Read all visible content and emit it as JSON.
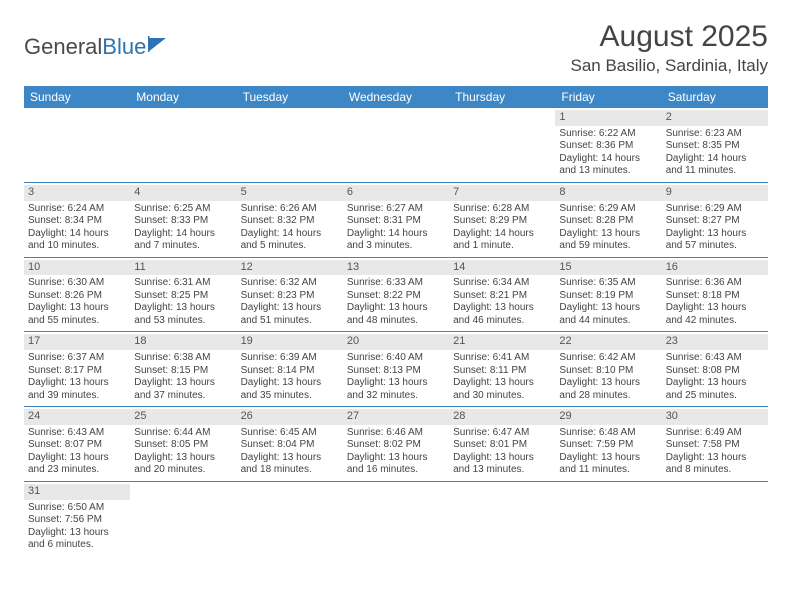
{
  "logo": {
    "part1": "General",
    "part2": "Blue"
  },
  "title": "August 2025",
  "location": "San Basilio, Sardinia, Italy",
  "colors": {
    "header_bg": "#3d87c7",
    "header_text": "#ffffff",
    "daynum_bg": "#e8e8e8",
    "border": "#3d87c7",
    "text": "#444444",
    "logo_blue": "#2e74b5"
  },
  "weekdays": [
    "Sunday",
    "Monday",
    "Tuesday",
    "Wednesday",
    "Thursday",
    "Friday",
    "Saturday"
  ],
  "weeks": [
    [
      null,
      null,
      null,
      null,
      null,
      {
        "n": "1",
        "sr": "Sunrise: 6:22 AM",
        "ss": "Sunset: 8:36 PM",
        "d1": "Daylight: 14 hours",
        "d2": "and 13 minutes."
      },
      {
        "n": "2",
        "sr": "Sunrise: 6:23 AM",
        "ss": "Sunset: 8:35 PM",
        "d1": "Daylight: 14 hours",
        "d2": "and 11 minutes."
      }
    ],
    [
      {
        "n": "3",
        "sr": "Sunrise: 6:24 AM",
        "ss": "Sunset: 8:34 PM",
        "d1": "Daylight: 14 hours",
        "d2": "and 10 minutes."
      },
      {
        "n": "4",
        "sr": "Sunrise: 6:25 AM",
        "ss": "Sunset: 8:33 PM",
        "d1": "Daylight: 14 hours",
        "d2": "and 7 minutes."
      },
      {
        "n": "5",
        "sr": "Sunrise: 6:26 AM",
        "ss": "Sunset: 8:32 PM",
        "d1": "Daylight: 14 hours",
        "d2": "and 5 minutes."
      },
      {
        "n": "6",
        "sr": "Sunrise: 6:27 AM",
        "ss": "Sunset: 8:31 PM",
        "d1": "Daylight: 14 hours",
        "d2": "and 3 minutes."
      },
      {
        "n": "7",
        "sr": "Sunrise: 6:28 AM",
        "ss": "Sunset: 8:29 PM",
        "d1": "Daylight: 14 hours",
        "d2": "and 1 minute."
      },
      {
        "n": "8",
        "sr": "Sunrise: 6:29 AM",
        "ss": "Sunset: 8:28 PM",
        "d1": "Daylight: 13 hours",
        "d2": "and 59 minutes."
      },
      {
        "n": "9",
        "sr": "Sunrise: 6:29 AM",
        "ss": "Sunset: 8:27 PM",
        "d1": "Daylight: 13 hours",
        "d2": "and 57 minutes."
      }
    ],
    [
      {
        "n": "10",
        "sr": "Sunrise: 6:30 AM",
        "ss": "Sunset: 8:26 PM",
        "d1": "Daylight: 13 hours",
        "d2": "and 55 minutes."
      },
      {
        "n": "11",
        "sr": "Sunrise: 6:31 AM",
        "ss": "Sunset: 8:25 PM",
        "d1": "Daylight: 13 hours",
        "d2": "and 53 minutes."
      },
      {
        "n": "12",
        "sr": "Sunrise: 6:32 AM",
        "ss": "Sunset: 8:23 PM",
        "d1": "Daylight: 13 hours",
        "d2": "and 51 minutes."
      },
      {
        "n": "13",
        "sr": "Sunrise: 6:33 AM",
        "ss": "Sunset: 8:22 PM",
        "d1": "Daylight: 13 hours",
        "d2": "and 48 minutes."
      },
      {
        "n": "14",
        "sr": "Sunrise: 6:34 AM",
        "ss": "Sunset: 8:21 PM",
        "d1": "Daylight: 13 hours",
        "d2": "and 46 minutes."
      },
      {
        "n": "15",
        "sr": "Sunrise: 6:35 AM",
        "ss": "Sunset: 8:19 PM",
        "d1": "Daylight: 13 hours",
        "d2": "and 44 minutes."
      },
      {
        "n": "16",
        "sr": "Sunrise: 6:36 AM",
        "ss": "Sunset: 8:18 PM",
        "d1": "Daylight: 13 hours",
        "d2": "and 42 minutes."
      }
    ],
    [
      {
        "n": "17",
        "sr": "Sunrise: 6:37 AM",
        "ss": "Sunset: 8:17 PM",
        "d1": "Daylight: 13 hours",
        "d2": "and 39 minutes."
      },
      {
        "n": "18",
        "sr": "Sunrise: 6:38 AM",
        "ss": "Sunset: 8:15 PM",
        "d1": "Daylight: 13 hours",
        "d2": "and 37 minutes."
      },
      {
        "n": "19",
        "sr": "Sunrise: 6:39 AM",
        "ss": "Sunset: 8:14 PM",
        "d1": "Daylight: 13 hours",
        "d2": "and 35 minutes."
      },
      {
        "n": "20",
        "sr": "Sunrise: 6:40 AM",
        "ss": "Sunset: 8:13 PM",
        "d1": "Daylight: 13 hours",
        "d2": "and 32 minutes."
      },
      {
        "n": "21",
        "sr": "Sunrise: 6:41 AM",
        "ss": "Sunset: 8:11 PM",
        "d1": "Daylight: 13 hours",
        "d2": "and 30 minutes."
      },
      {
        "n": "22",
        "sr": "Sunrise: 6:42 AM",
        "ss": "Sunset: 8:10 PM",
        "d1": "Daylight: 13 hours",
        "d2": "and 28 minutes."
      },
      {
        "n": "23",
        "sr": "Sunrise: 6:43 AM",
        "ss": "Sunset: 8:08 PM",
        "d1": "Daylight: 13 hours",
        "d2": "and 25 minutes."
      }
    ],
    [
      {
        "n": "24",
        "sr": "Sunrise: 6:43 AM",
        "ss": "Sunset: 8:07 PM",
        "d1": "Daylight: 13 hours",
        "d2": "and 23 minutes."
      },
      {
        "n": "25",
        "sr": "Sunrise: 6:44 AM",
        "ss": "Sunset: 8:05 PM",
        "d1": "Daylight: 13 hours",
        "d2": "and 20 minutes."
      },
      {
        "n": "26",
        "sr": "Sunrise: 6:45 AM",
        "ss": "Sunset: 8:04 PM",
        "d1": "Daylight: 13 hours",
        "d2": "and 18 minutes."
      },
      {
        "n": "27",
        "sr": "Sunrise: 6:46 AM",
        "ss": "Sunset: 8:02 PM",
        "d1": "Daylight: 13 hours",
        "d2": "and 16 minutes."
      },
      {
        "n": "28",
        "sr": "Sunrise: 6:47 AM",
        "ss": "Sunset: 8:01 PM",
        "d1": "Daylight: 13 hours",
        "d2": "and 13 minutes."
      },
      {
        "n": "29",
        "sr": "Sunrise: 6:48 AM",
        "ss": "Sunset: 7:59 PM",
        "d1": "Daylight: 13 hours",
        "d2": "and 11 minutes."
      },
      {
        "n": "30",
        "sr": "Sunrise: 6:49 AM",
        "ss": "Sunset: 7:58 PM",
        "d1": "Daylight: 13 hours",
        "d2": "and 8 minutes."
      }
    ],
    [
      {
        "n": "31",
        "sr": "Sunrise: 6:50 AM",
        "ss": "Sunset: 7:56 PM",
        "d1": "Daylight: 13 hours",
        "d2": "and 6 minutes."
      },
      null,
      null,
      null,
      null,
      null,
      null
    ]
  ]
}
